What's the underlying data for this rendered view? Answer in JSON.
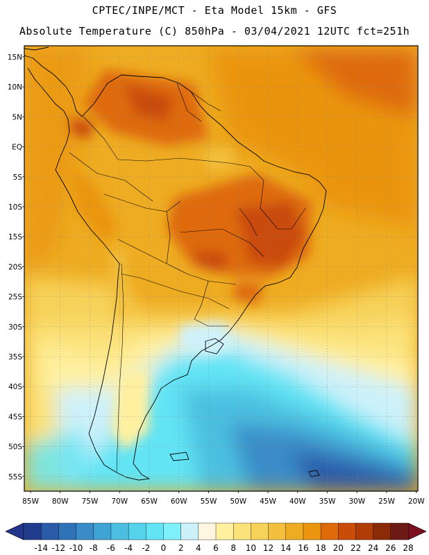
{
  "header": {
    "line1": "CPTEC/INPE/MCT -  Eta Model 15km - GFS",
    "line2": "Absolute Temperature (C) 850hPa - 03/04/2021 12UTC fct=251h"
  },
  "map": {
    "lat_labels": [
      "15N",
      "10N",
      "5N",
      "EQ",
      "5S",
      "10S",
      "15S",
      "20S",
      "25S",
      "30S",
      "35S",
      "40S",
      "45S",
      "50S",
      "55S"
    ],
    "lon_labels": [
      "85W",
      "80W",
      "75W",
      "70W",
      "65W",
      "60W",
      "55W",
      "50W",
      "45W",
      "40W",
      "35W",
      "30W",
      "25W",
      "20W"
    ]
  },
  "colorbar": {
    "labels": [
      "-14",
      "-12",
      "-10",
      "-8",
      "-6",
      "-4",
      "-2",
      "0",
      "2",
      "4",
      "6",
      "8",
      "10",
      "12",
      "14",
      "16",
      "18",
      "20",
      "22",
      "24",
      "26",
      "28"
    ],
    "colors": [
      "#1f3d8c",
      "#2a5aa8",
      "#2f72b8",
      "#3a8cc8",
      "#3fa3d4",
      "#4cbfe0",
      "#55d2ec",
      "#62e4f4",
      "#7ff0fa",
      "#cdf1fa",
      "#fff6e0",
      "#fff0a0",
      "#fbe27a",
      "#f7d25a",
      "#f2c03c",
      "#eeac22",
      "#ea9410",
      "#de6a0a",
      "#c94c08",
      "#b03c06",
      "#8a2a06",
      "#6e1a14"
    ],
    "under_color": "#24358c",
    "over_color": "#7a1020"
  }
}
